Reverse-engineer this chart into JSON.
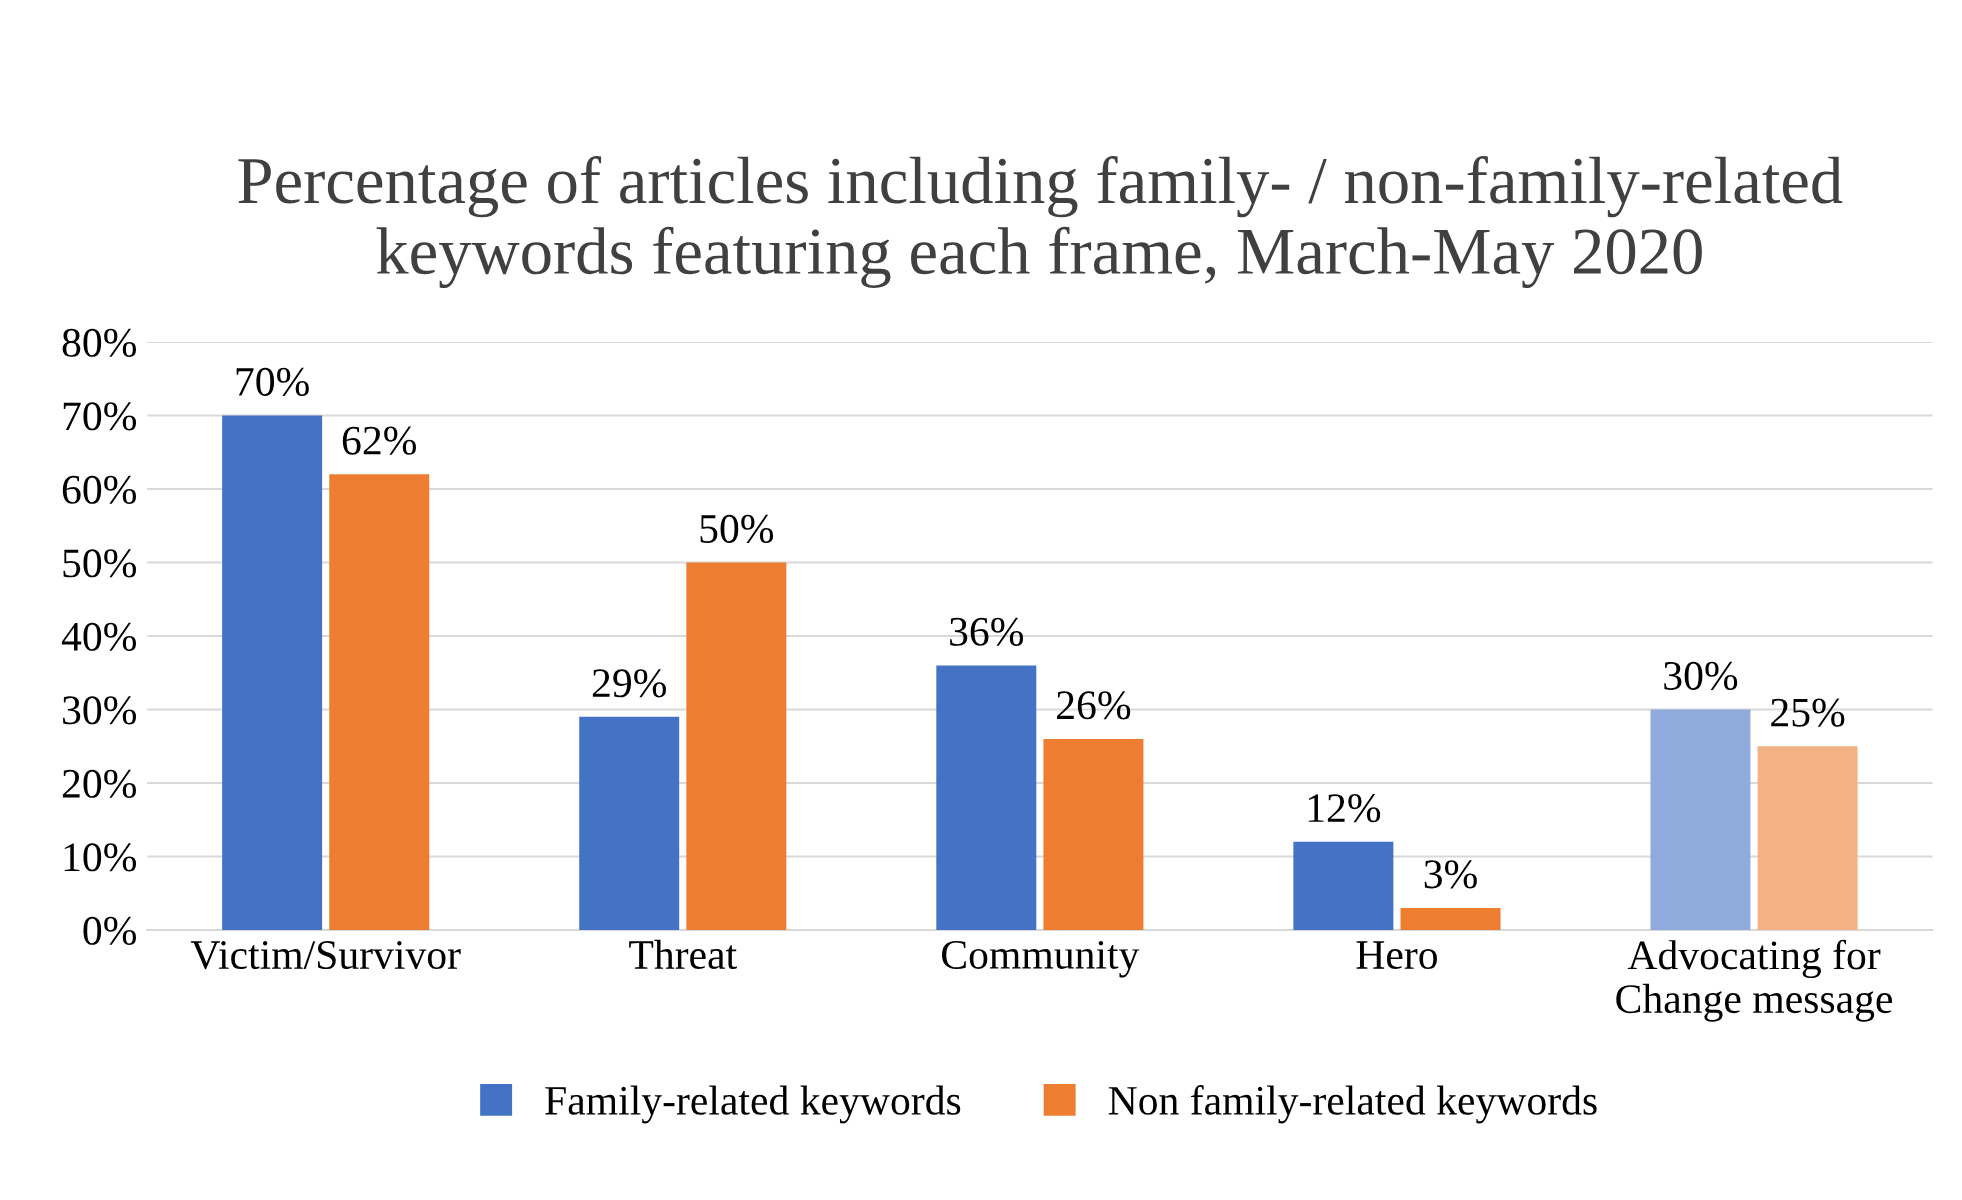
{
  "chart_data": {
    "type": "bar",
    "title": "Percentage of articles including family- / non-family-related keywords featuring each frame, March-May 2020",
    "categories": [
      "Victim/Survivor",
      "Threat",
      "Community",
      "Hero",
      "Advocating for\nChange message"
    ],
    "series": [
      {
        "name": "Family-related keywords",
        "color": "#4472c4",
        "colors": [
          "#4472c4",
          "#4472c4",
          "#4472c4",
          "#4472c4",
          "#8faadc"
        ],
        "values": [
          70,
          29,
          36,
          12,
          30
        ],
        "value_labels": [
          "70%",
          "29%",
          "36%",
          "12%",
          "30%"
        ]
      },
      {
        "name": "Non family-related keywords",
        "color": "#ed7d31",
        "colors": [
          "#ed7d31",
          "#ed7d31",
          "#ed7d31",
          "#ed7d31",
          "#f4b183"
        ],
        "values": [
          62,
          50,
          26,
          3,
          25
        ],
        "value_labels": [
          "62%",
          "50%",
          "26%",
          "3%",
          "25%"
        ]
      }
    ],
    "ylim": [
      0,
      80
    ],
    "yticks": [
      {
        "value": 0,
        "label": "0%"
      },
      {
        "value": 10,
        "label": "10%"
      },
      {
        "value": 20,
        "label": "20%"
      },
      {
        "value": 30,
        "label": "30%"
      },
      {
        "value": 40,
        "label": "40%"
      },
      {
        "value": 50,
        "label": "50%"
      },
      {
        "value": 60,
        "label": "60%"
      },
      {
        "value": 70,
        "label": "70%"
      },
      {
        "value": 80,
        "label": "80%"
      }
    ],
    "grid": "y",
    "legend": "bottom"
  }
}
